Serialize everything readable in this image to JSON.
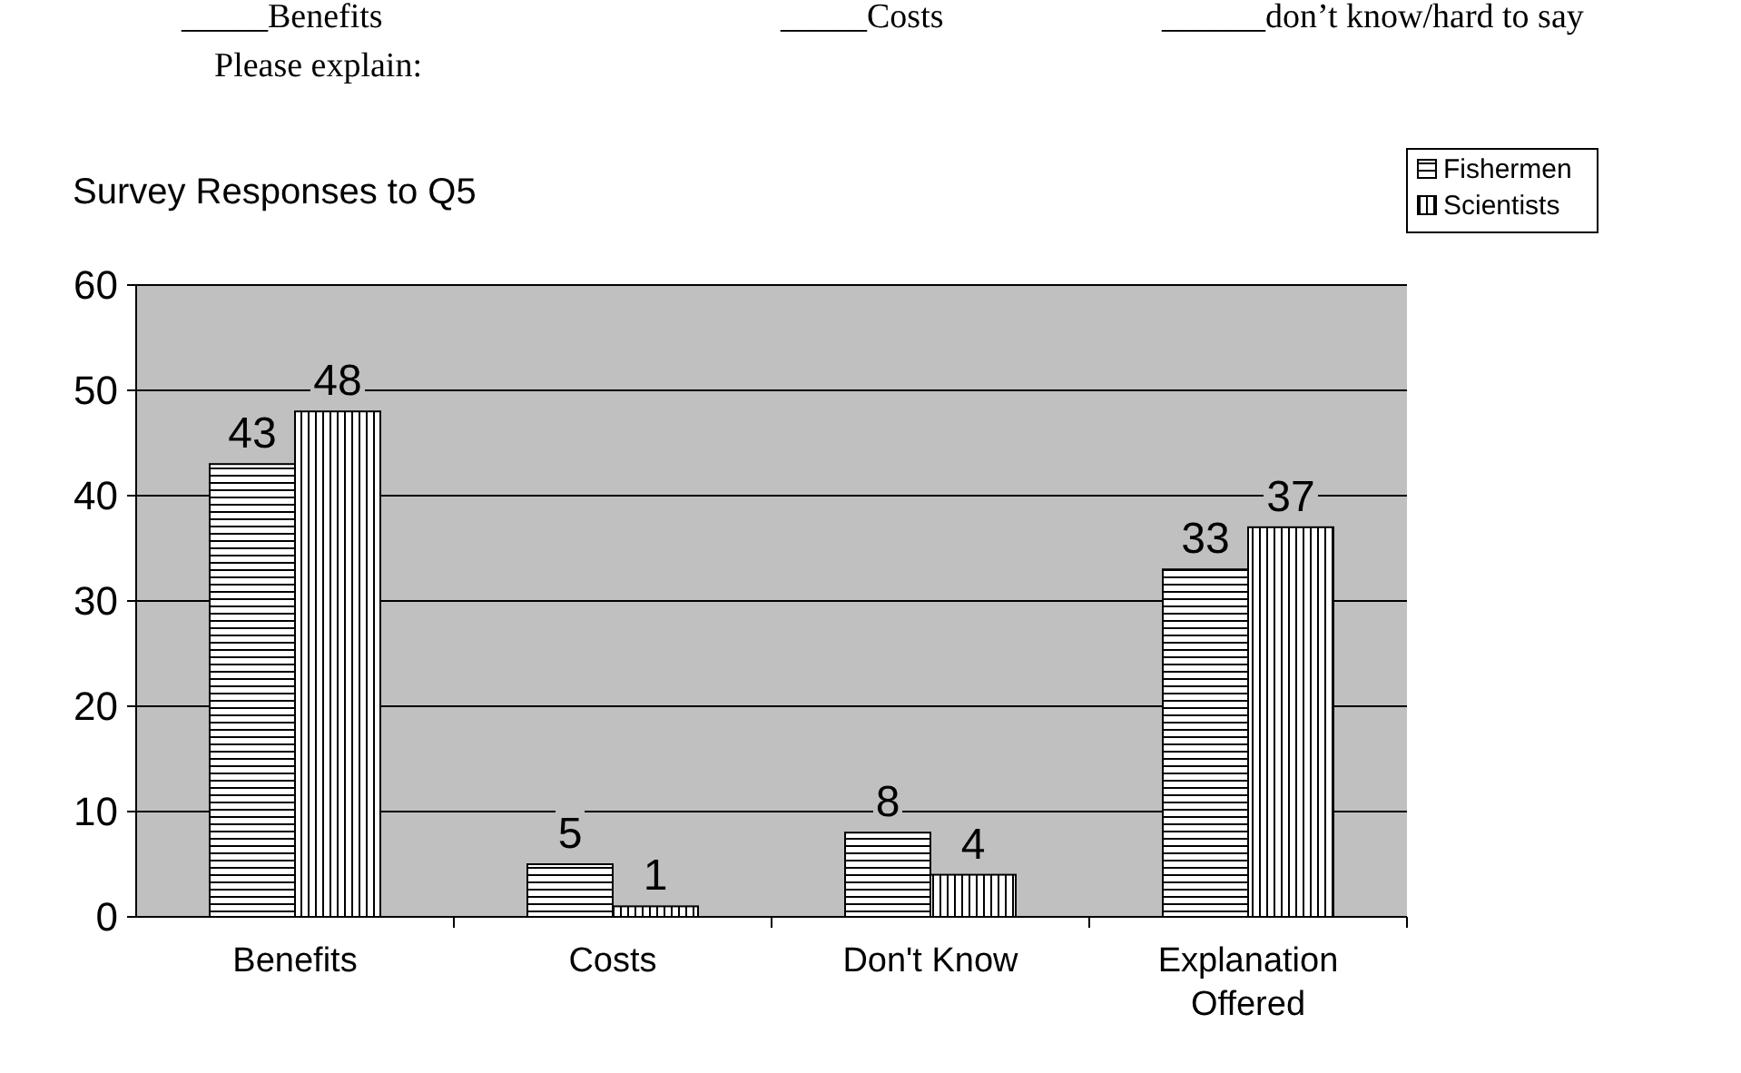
{
  "chart_data": {
    "type": "bar",
    "title": "Survey Responses to Q5",
    "annotations": [
      "_____Benefits",
      "_____Costs",
      "______don’t know/hard to say",
      "Please explain:"
    ],
    "categories": [
      "Benefits",
      "Costs",
      "Don't Know",
      "Explanation\nOffered"
    ],
    "series": [
      {
        "name": "Fishermen",
        "color": "#000000",
        "values": [
          43,
          5,
          8,
          33
        ]
      },
      {
        "name": "Scientists",
        "color": "#000000",
        "values": [
          48,
          1,
          4,
          37
        ]
      }
    ],
    "ylim": [
      0,
      60
    ],
    "yticks": [
      0,
      10,
      20,
      30,
      40,
      50,
      60
    ],
    "grid": "y",
    "data_labels": true,
    "legend": "top right"
  }
}
